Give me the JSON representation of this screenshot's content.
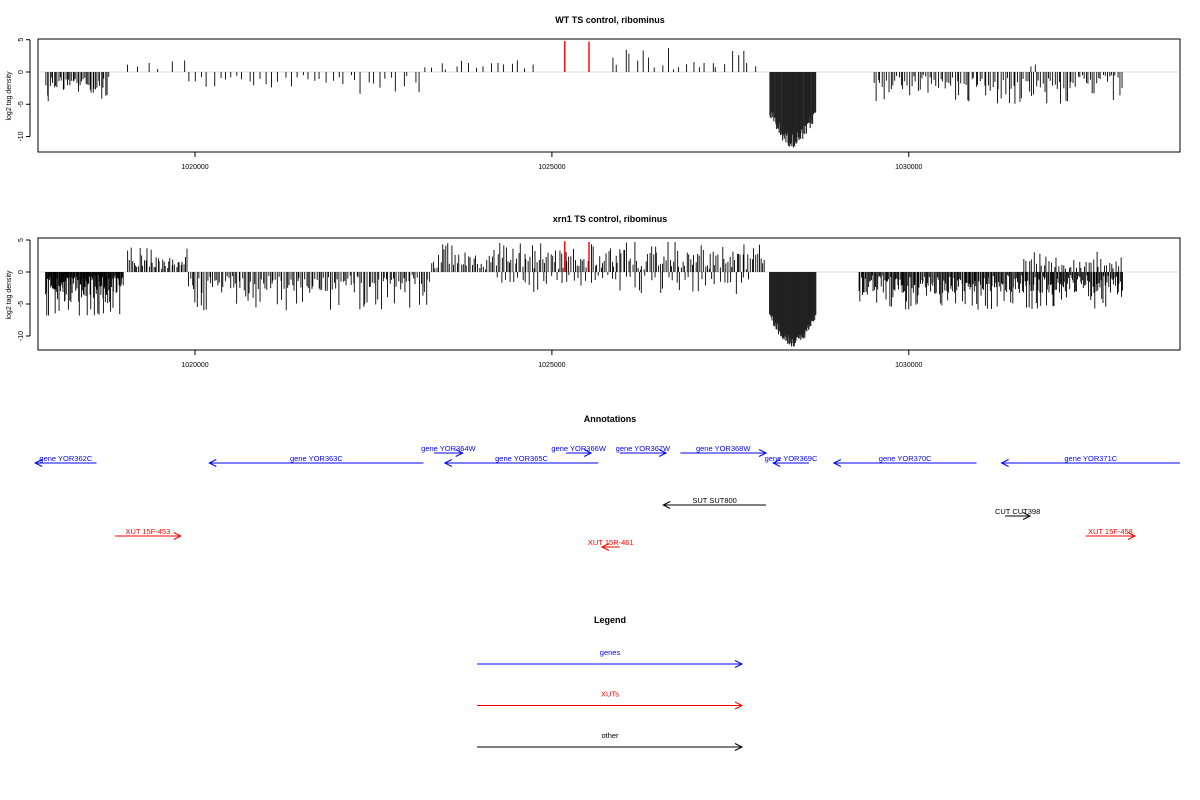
{
  "chart_data": [
    {
      "type": "bar",
      "title": "WT TS control, ribominus",
      "ylabel": "log2 tag density",
      "xlim": [
        1017800,
        1033800
      ],
      "ylim": [
        -12.5,
        5
      ],
      "xticks": [
        1020000,
        1025000,
        1030000
      ],
      "yticks": [
        5,
        0,
        -5,
        -10
      ],
      "grid": false,
      "bar_color": "#000000",
      "positive_regions": [
        {
          "start": 1019050,
          "end": 1019900,
          "count": 6,
          "max": 3.0
        },
        {
          "start": 1023200,
          "end": 1024800,
          "count": 16,
          "max": 2.4
        },
        {
          "start": 1025800,
          "end": 1027900,
          "count": 24,
          "max": 4.0
        },
        {
          "start": 1031700,
          "end": 1031800,
          "count": 2,
          "max": 1.5
        }
      ],
      "negative_regions": [
        {
          "start": 1017900,
          "end": 1018800,
          "count": 45,
          "min": -5.0
        },
        {
          "start": 1019900,
          "end": 1023200,
          "count": 40,
          "min": -3.5
        },
        {
          "start": 1028050,
          "end": 1028700,
          "count": 80,
          "min": -11.8,
          "deep": true
        },
        {
          "start": 1029500,
          "end": 1033000,
          "count": 120,
          "min": -5.0
        }
      ],
      "highlights": [
        {
          "position": 1025180,
          "value": 4.8,
          "color": "#ff0000"
        },
        {
          "position": 1025520,
          "value": 4.7,
          "color": "#ff0000"
        }
      ]
    },
    {
      "type": "bar",
      "title": "xrn1 TS control, ribominus",
      "ylabel": "log2 tag density",
      "xlim": [
        1017800,
        1033800
      ],
      "ylim": [
        -12.5,
        5
      ],
      "xticks": [
        1020000,
        1025000,
        1030000
      ],
      "yticks": [
        5,
        0,
        -5,
        -10
      ],
      "grid": false,
      "bar_color": "#000000",
      "positive_regions": [
        {
          "start": 1019050,
          "end": 1019900,
          "count": 40,
          "max": 4.0
        },
        {
          "start": 1023300,
          "end": 1028000,
          "count": 180,
          "max": 4.7
        },
        {
          "start": 1031600,
          "end": 1033000,
          "count": 40,
          "max": 3.3
        }
      ],
      "negative_regions": [
        {
          "start": 1017900,
          "end": 1019000,
          "count": 120,
          "min": -7.0
        },
        {
          "start": 1019900,
          "end": 1023300,
          "count": 140,
          "min": -6.0
        },
        {
          "start": 1024200,
          "end": 1027800,
          "count": 60,
          "min": -3.5
        },
        {
          "start": 1028050,
          "end": 1028700,
          "count": 160,
          "min": -11.8,
          "deep": true
        },
        {
          "start": 1029300,
          "end": 1033000,
          "count": 260,
          "min": -6.0
        }
      ],
      "highlights": [
        {
          "position": 1025180,
          "value": 4.8,
          "color": "#ff0000"
        },
        {
          "position": 1025520,
          "value": 4.7,
          "color": "#ff0000"
        }
      ]
    },
    {
      "type": "annotation-track",
      "title": "Annotations",
      "xlim": [
        1017800,
        1033800
      ],
      "features": [
        {
          "label": "gene YOR362C",
          "start": 1017760,
          "end": 1018620,
          "strand": "-",
          "row": 2,
          "kind": "gene"
        },
        {
          "label": "gene YOR363C",
          "start": 1020200,
          "end": 1023200,
          "strand": "-",
          "row": 2,
          "kind": "gene"
        },
        {
          "label": "gene YOR364W",
          "start": 1023350,
          "end": 1023750,
          "strand": "+",
          "row": 1,
          "kind": "gene"
        },
        {
          "label": "gene YOR365C",
          "start": 1023500,
          "end": 1025650,
          "strand": "-",
          "row": 2,
          "kind": "gene"
        },
        {
          "label": "gene YOR366W",
          "start": 1025200,
          "end": 1025550,
          "strand": "+",
          "row": 1,
          "kind": "gene"
        },
        {
          "label": "gene YOR367W",
          "start": 1025950,
          "end": 1026600,
          "strand": "+",
          "row": 1,
          "kind": "gene"
        },
        {
          "label": "gene YOR368W",
          "start": 1026800,
          "end": 1028000,
          "strand": "+",
          "row": 1,
          "kind": "gene"
        },
        {
          "label": "gene YOR369C",
          "start": 1028100,
          "end": 1028600,
          "strand": "-",
          "row": 2,
          "kind": "gene"
        },
        {
          "label": "gene YOR370C",
          "start": 1028950,
          "end": 1030950,
          "strand": "-",
          "row": 2,
          "kind": "gene"
        },
        {
          "label": "gene YOR371C",
          "start": 1031300,
          "end": 1033800,
          "strand": "-",
          "row": 2,
          "kind": "gene"
        },
        {
          "label": "SUT SUT800",
          "start": 1026560,
          "end": 1028000,
          "strand": "-",
          "row": 3,
          "kind": "other"
        },
        {
          "label": "CUT CUT398",
          "start": 1031350,
          "end": 1031700,
          "strand": "+",
          "row": 4,
          "kind": "other"
        },
        {
          "label": "XUT 15F-453",
          "start": 1018880,
          "end": 1019800,
          "strand": "+",
          "row": 5,
          "kind": "xut"
        },
        {
          "label": "XUT 15R-461",
          "start": 1025700,
          "end": 1025950,
          "strand": "-",
          "row": 6,
          "kind": "xut"
        },
        {
          "label": "XUT 15F-458",
          "start": 1032480,
          "end": 1033170,
          "strand": "+",
          "row": 5,
          "kind": "xut"
        }
      ]
    }
  ],
  "legend": {
    "title": "Legend",
    "items": [
      {
        "label": "genes",
        "color": "#0000ff"
      },
      {
        "label": "XUTs",
        "color": "#ff0000"
      },
      {
        "label": "other",
        "color": "#000000"
      }
    ]
  },
  "colors": {
    "gene": "#0000ff",
    "xut": "#ff0000",
    "other": "#000000",
    "axis": "#000000"
  }
}
